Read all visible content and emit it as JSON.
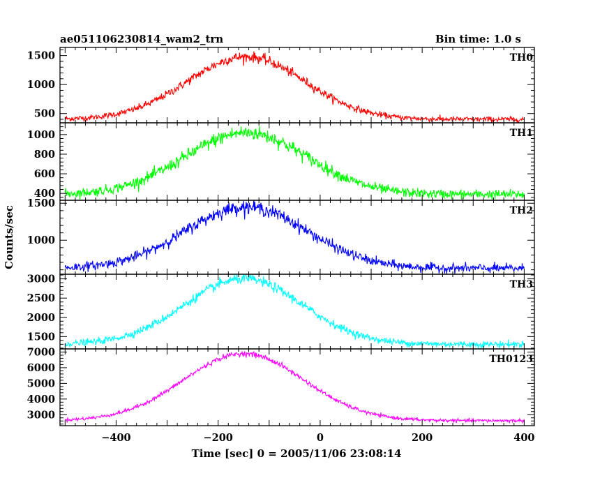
{
  "chart_data": {
    "type": "line",
    "title": "ae051106230814_wam2_trn",
    "subtitle": "Bin time: 1.0 s",
    "xlabel": "Time [sec] 0 = 2005/11/06 23:08:14",
    "ylabel": "Counts/sec",
    "xlim": [
      -510,
      420
    ],
    "x_ticks": [
      -400,
      -200,
      0,
      200,
      400
    ],
    "x_tick_labels": [
      "−400",
      "−200",
      "0",
      "200",
      "400"
    ],
    "x_range_data": [
      -500,
      400
    ],
    "series": [
      {
        "name": "TH0",
        "color": "#ff0000",
        "ylim": [
          340,
          1640
        ],
        "y_ticks": [
          500,
          1000,
          1500
        ],
        "y_tick_labels": [
          "500",
          "1000",
          "1500"
        ],
        "baseline": 400,
        "peak": 1480,
        "peak_time": -145,
        "sigma": 115,
        "noise": 45
      },
      {
        "name": "TH1",
        "color": "#00ff00",
        "ylim": [
          330,
          1120
        ],
        "y_ticks": [
          400,
          600,
          800,
          1000
        ],
        "y_tick_labels": [
          "400",
          "600",
          "800",
          "1000"
        ],
        "baseline": 390,
        "peak": 1020,
        "peak_time": -145,
        "sigma": 120,
        "noise": 38
      },
      {
        "name": "TH2",
        "color": "#0000ff",
        "ylim": [
          540,
          1540
        ],
        "y_ticks": [
          1000,
          1500
        ],
        "y_tick_labels": [
          "1000",
          "1500"
        ],
        "baseline": 620,
        "peak": 1450,
        "peak_time": -145,
        "sigma": 120,
        "noise": 45
      },
      {
        "name": "TH3",
        "color": "#00ffff",
        "ylim": [
          1180,
          3120
        ],
        "y_ticks": [
          1500,
          2000,
          2500,
          3000
        ],
        "y_tick_labels": [
          "1500",
          "2000",
          "2500",
          "3000"
        ],
        "baseline": 1300,
        "peak": 3000,
        "peak_time": -150,
        "sigma": 115,
        "noise": 65
      },
      {
        "name": "TH0123",
        "color": "#ff00ff",
        "ylim": [
          2300,
          7200
        ],
        "y_ticks": [
          3000,
          4000,
          5000,
          6000,
          7000
        ],
        "y_tick_labels": [
          "3000",
          "4000",
          "5000",
          "6000",
          "7000"
        ],
        "baseline": 2620,
        "peak": 6900,
        "peak_time": -150,
        "sigma": 118,
        "noise": 85
      }
    ]
  }
}
